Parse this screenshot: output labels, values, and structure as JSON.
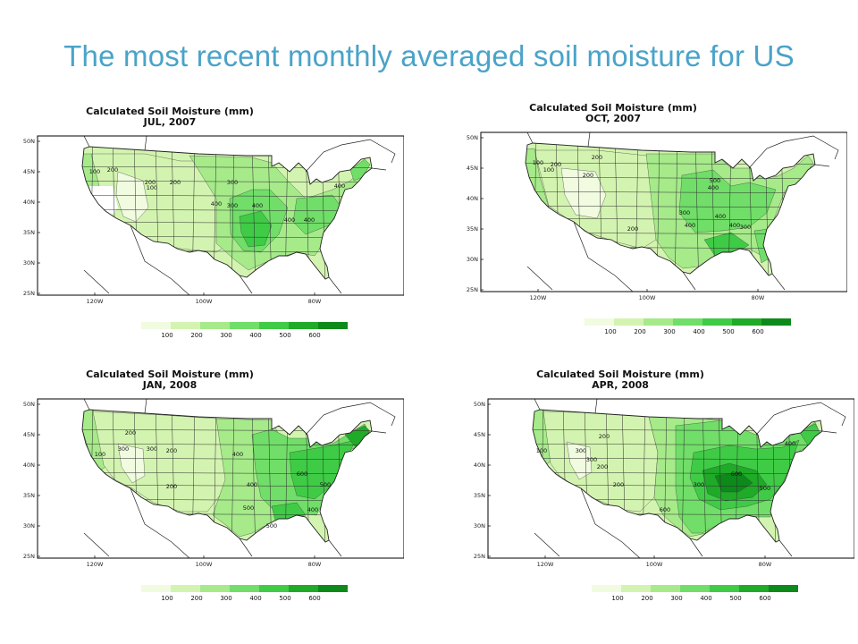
{
  "title": "The most recent monthly averaged soil moisture for US",
  "colors": {
    "title": "#4aa3c9",
    "scale": [
      "#f0fbe0",
      "#d3f4b0",
      "#a6ea8a",
      "#70de68",
      "#3fcb46",
      "#1faa28",
      "#0d8a1a"
    ],
    "states": "#2e2e2e",
    "coast": "#222222",
    "frame": "#000000"
  },
  "maps": [
    {
      "id": "jul-2007",
      "title_line1": "Calculated Soil Moisture (mm)",
      "title_line2": "JUL, 2007",
      "lat_ticks": [
        "50N",
        "45N",
        "40N",
        "35N",
        "30N",
        "25N"
      ],
      "lon_ticks": [
        "120W",
        "100W",
        "80W"
      ],
      "legend": [
        "100",
        "200",
        "300",
        "400",
        "500",
        "600"
      ],
      "contour_labels": [
        "100",
        "200",
        "200",
        "100",
        "200",
        "300",
        "400",
        "300",
        "400",
        "400",
        "400",
        "400"
      ]
    },
    {
      "id": "oct-2007",
      "title_line1": "Calculated Soil Moisture (mm)",
      "title_line2": "OCT, 2007",
      "lat_ticks": [
        "50N",
        "45N",
        "40N",
        "35N",
        "30N",
        "25N"
      ],
      "lon_ticks": [
        "120W",
        "100W",
        "80W"
      ],
      "legend": [
        "100",
        "200",
        "300",
        "400",
        "500",
        "600"
      ],
      "contour_labels": [
        "100",
        "200",
        "100",
        "200",
        "200",
        "500",
        "400",
        "300",
        "400",
        "400",
        "400",
        "300",
        "200"
      ]
    },
    {
      "id": "jan-2008",
      "title_line1": "Calculated Soil Moisture (mm)",
      "title_line2": "JAN, 2008",
      "lat_ticks": [
        "50N",
        "45N",
        "40N",
        "35N",
        "30N",
        "25N"
      ],
      "lon_ticks": [
        "120W",
        "100W",
        "80W"
      ],
      "legend": [
        "100",
        "200",
        "300",
        "400",
        "500",
        "600"
      ],
      "contour_labels": [
        "200",
        "300",
        "100",
        "300",
        "200",
        "200",
        "400",
        "400",
        "600",
        "500",
        "500",
        "400",
        "500"
      ]
    },
    {
      "id": "apr-2008",
      "title_line1": "Calculated Soil Moisture (mm)",
      "title_line2": "APR, 2008",
      "lat_ticks": [
        "50N",
        "45N",
        "40N",
        "35N",
        "30N",
        "25N"
      ],
      "lon_ticks": [
        "120W",
        "100W",
        "80W"
      ],
      "legend": [
        "100",
        "200",
        "300",
        "400",
        "500",
        "600"
      ],
      "contour_labels": [
        "100",
        "300",
        "200",
        "300",
        "200",
        "200",
        "300",
        "600",
        "500",
        "600",
        "400"
      ]
    }
  ]
}
